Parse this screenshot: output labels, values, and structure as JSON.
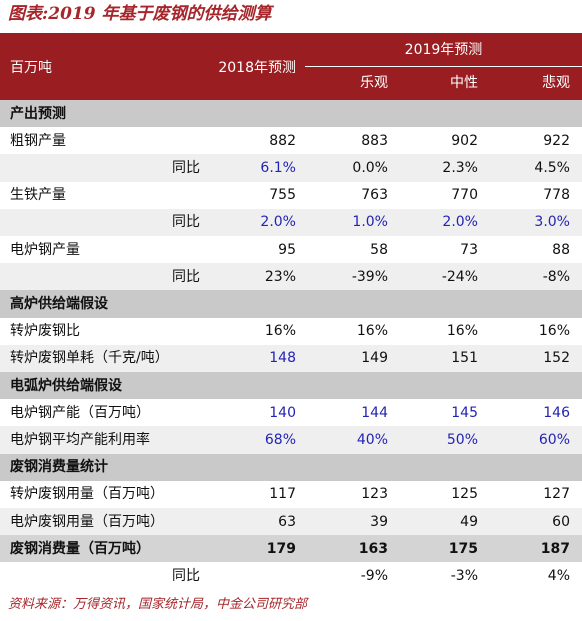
{
  "title": "图表:2019 年基于废钢的供给测算",
  "table": {
    "header": {
      "unit": "百万吨",
      "col2018": "2018年预测",
      "group2019": "2019年预测",
      "scenarios": [
        "乐观",
        "中性",
        "悲观"
      ]
    },
    "highlight_color": "#2424b4",
    "rows": [
      {
        "label": "产出预测",
        "style": "section"
      },
      {
        "label": "粗钢产量",
        "values": [
          "882",
          "883",
          "902",
          "922"
        ]
      },
      {
        "label": "同比",
        "style": "sub",
        "values": [
          "6.1%",
          "0.0%",
          "2.3%",
          "4.5%"
        ],
        "highlight": [
          true,
          false,
          false,
          false
        ]
      },
      {
        "label": "生铁产量",
        "values": [
          "755",
          "763",
          "770",
          "778"
        ]
      },
      {
        "label": "同比",
        "style": "sub",
        "values": [
          "2.0%",
          "1.0%",
          "2.0%",
          "3.0%"
        ],
        "highlight": [
          true,
          true,
          true,
          true
        ]
      },
      {
        "label": "电炉钢产量",
        "values": [
          "95",
          "58",
          "73",
          "88"
        ]
      },
      {
        "label": "同比",
        "style": "sub",
        "values": [
          "23%",
          "-39%",
          "-24%",
          "-8%"
        ]
      },
      {
        "label": "高炉供给端假设",
        "style": "section"
      },
      {
        "label": "转炉废钢比",
        "values": [
          "16%",
          "16%",
          "16%",
          "16%"
        ]
      },
      {
        "label": "转炉废钢单耗（千克/吨）",
        "values": [
          "148",
          "149",
          "151",
          "152"
        ],
        "highlight": [
          true,
          false,
          false,
          false
        ]
      },
      {
        "label": "电弧炉供给端假设",
        "style": "section"
      },
      {
        "label": "电炉钢产能（百万吨）",
        "values": [
          "140",
          "144",
          "145",
          "146"
        ],
        "highlight": [
          true,
          true,
          true,
          true
        ]
      },
      {
        "label": "电炉钢平均产能利用率",
        "values": [
          "68%",
          "40%",
          "50%",
          "60%"
        ],
        "highlight": [
          true,
          true,
          true,
          true
        ]
      },
      {
        "label": "废钢消费量统计",
        "style": "section"
      },
      {
        "label": "转炉废钢用量（百万吨）",
        "values": [
          "117",
          "123",
          "125",
          "127"
        ]
      },
      {
        "label": "电炉废钢用量（百万吨）",
        "values": [
          "63",
          "39",
          "49",
          "60"
        ]
      },
      {
        "label": "废钢消费量（百万吨）",
        "style": "total",
        "values": [
          "179",
          "163",
          "175",
          "187"
        ]
      },
      {
        "label": "同比",
        "style": "sub",
        "values": [
          "",
          "-9%",
          "-3%",
          "4%"
        ]
      }
    ]
  },
  "source": "资料来源：万得资讯，国家统计局，中金公司研究部"
}
